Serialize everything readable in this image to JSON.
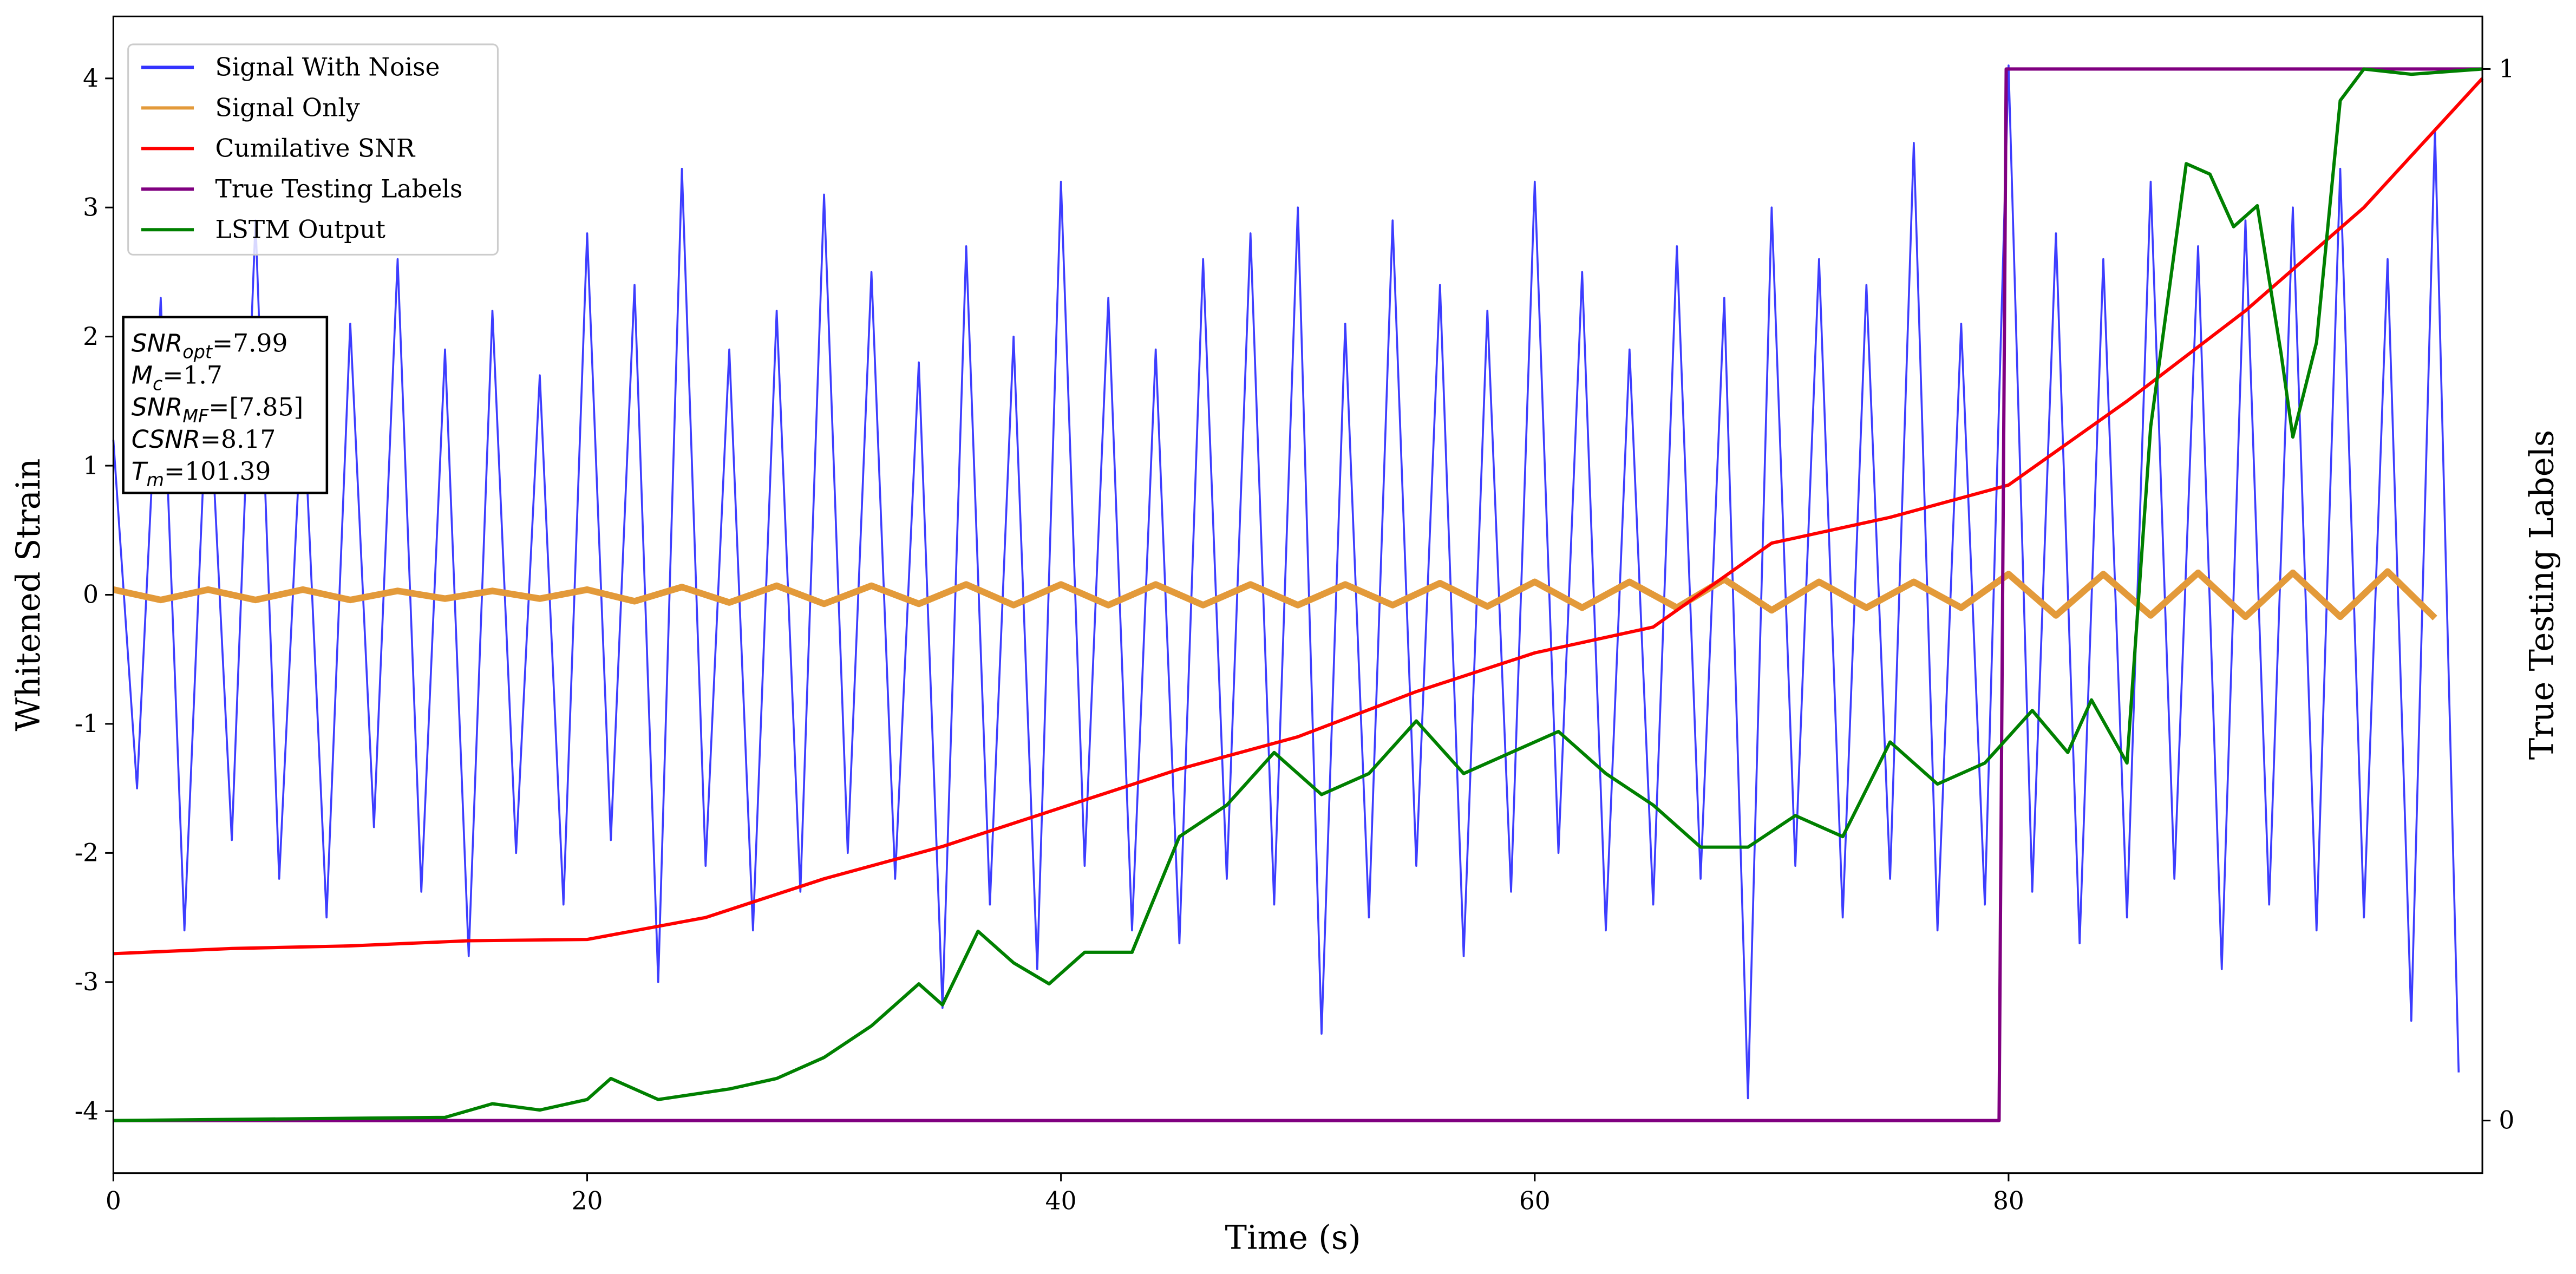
{
  "chart_data": {
    "type": "line",
    "xlabel": "Time (s)",
    "ylabel": "Whitened Strain",
    "y2label": "True Testing Labels",
    "xlim": [
      0,
      100
    ],
    "ylim": [
      -4.48,
      4.48
    ],
    "y2lim": [
      -0.05,
      1.05
    ],
    "xticks": [
      0,
      20,
      40,
      60,
      80
    ],
    "yticks": [
      -4,
      -3,
      -2,
      -1,
      0,
      1,
      2,
      3,
      4
    ],
    "y2ticks": [
      0,
      1
    ],
    "legend": "upper left",
    "annotations": [
      {
        "symbol": "SNR",
        "subscript": "opt",
        "text": "=7.99"
      },
      {
        "symbol": "M",
        "subscript": "c",
        "text": "=1.7"
      },
      {
        "symbol": "SNR",
        "subscript": "MF",
        "text": "=[7.85]"
      },
      {
        "symbol": "CSNR",
        "subscript": "",
        "text": "=8.17"
      },
      {
        "symbol": "T",
        "subscript": "m",
        "text": "=101.39"
      }
    ],
    "series": [
      {
        "name": "Signal With Noise",
        "color": "#3333ff",
        "width": 1.2,
        "x": [
          0,
          1,
          2,
          3,
          4,
          5,
          6,
          7,
          8,
          9,
          10,
          11,
          12,
          13,
          14,
          15,
          16,
          17,
          18,
          19,
          20,
          21,
          22,
          23,
          24,
          25,
          26,
          27,
          28,
          29,
          30,
          31,
          32,
          33,
          34,
          35,
          36,
          37,
          38,
          39,
          40,
          41,
          42,
          43,
          44,
          45,
          46,
          47,
          48,
          49,
          50,
          51,
          52,
          53,
          54,
          55,
          56,
          57,
          58,
          59,
          60,
          61,
          62,
          63,
          64,
          65,
          66,
          67,
          68,
          69,
          70,
          71,
          72,
          73,
          74,
          75,
          76,
          77,
          78,
          79,
          80,
          81,
          82,
          83,
          84,
          85,
          86,
          87,
          88,
          89,
          90,
          91,
          92,
          93,
          94,
          95,
          96,
          97,
          98,
          99
        ],
        "values": [
          1.2,
          -1.5,
          2.3,
          -2.6,
          1.8,
          -1.9,
          2.9,
          -2.2,
          1.6,
          -2.5,
          2.1,
          -1.8,
          2.6,
          -2.3,
          1.9,
          -2.8,
          2.2,
          -2.0,
          1.7,
          -2.4,
          2.8,
          -1.9,
          2.4,
          -3.0,
          3.3,
          -2.1,
          1.9,
          -2.6,
          2.2,
          -2.3,
          3.1,
          -2.0,
          2.5,
          -2.2,
          1.8,
          -3.2,
          2.7,
          -2.4,
          2.0,
          -2.9,
          3.2,
          -2.1,
          2.3,
          -2.6,
          1.9,
          -2.7,
          2.6,
          -2.2,
          2.8,
          -2.4,
          3.0,
          -3.4,
          2.1,
          -2.5,
          2.9,
          -2.1,
          2.4,
          -2.8,
          2.2,
          -2.3,
          3.2,
          -2.0,
          2.5,
          -2.6,
          1.9,
          -2.4,
          2.7,
          -2.2,
          2.3,
          -3.9,
          3.0,
          -2.1,
          2.6,
          -2.5,
          2.4,
          -2.2,
          3.5,
          -2.6,
          2.1,
          -2.4,
          4.1,
          -2.3,
          2.8,
          -2.7,
          2.6,
          -2.5,
          3.2,
          -2.2,
          2.7,
          -2.9,
          2.9,
          -2.4,
          3.0,
          -2.6,
          3.3,
          -2.5,
          2.6,
          -3.3,
          3.6,
          -3.7
        ]
      },
      {
        "name": "Signal Only",
        "color": "#e39a3a",
        "width": 4,
        "x": [
          0,
          2,
          4,
          6,
          8,
          10,
          12,
          14,
          16,
          18,
          20,
          22,
          24,
          26,
          28,
          30,
          32,
          34,
          36,
          38,
          40,
          42,
          44,
          46,
          48,
          50,
          52,
          54,
          56,
          58,
          60,
          62,
          64,
          66,
          68,
          70,
          72,
          74,
          76,
          78,
          80,
          82,
          84,
          86,
          88,
          90,
          92,
          94,
          96,
          98
        ],
        "values": [
          0.04,
          -0.04,
          0.04,
          -0.04,
          0.04,
          -0.04,
          0.03,
          -0.03,
          0.03,
          -0.03,
          0.04,
          -0.05,
          0.06,
          -0.06,
          0.07,
          -0.07,
          0.07,
          -0.07,
          0.08,
          -0.08,
          0.08,
          -0.08,
          0.08,
          -0.08,
          0.08,
          -0.08,
          0.08,
          -0.08,
          0.09,
          -0.09,
          0.1,
          -0.1,
          0.1,
          -0.1,
          0.12,
          -0.12,
          0.1,
          -0.1,
          0.1,
          -0.1,
          0.16,
          -0.16,
          0.16,
          -0.16,
          0.17,
          -0.17,
          0.17,
          -0.17,
          0.18,
          -0.18
        ]
      },
      {
        "name": "Cumilative SNR",
        "color": "#ff0000",
        "width": 2,
        "x": [
          0,
          5,
          10,
          15,
          20,
          25,
          30,
          35,
          40,
          45,
          50,
          55,
          60,
          65,
          70,
          75,
          80,
          85,
          90,
          95,
          100
        ],
        "values": [
          -2.78,
          -2.74,
          -2.72,
          -2.68,
          -2.67,
          -2.5,
          -2.2,
          -1.95,
          -1.65,
          -1.35,
          -1.1,
          -0.75,
          -0.45,
          -0.25,
          0.4,
          0.6,
          0.85,
          1.5,
          2.2,
          3.0,
          4.0
        ]
      },
      {
        "name": "True Testing Labels",
        "color": "#800080",
        "width": 2,
        "axis": "y2",
        "x": [
          0,
          79.6,
          79.9,
          100
        ],
        "values": [
          0,
          0,
          1,
          1
        ]
      },
      {
        "name": "LSTM Output",
        "color": "#008000",
        "width": 2,
        "axis": "y2",
        "x": [
          0,
          14,
          16,
          18,
          20,
          21,
          23,
          26,
          28,
          30,
          32,
          34,
          35,
          36.5,
          38,
          39.5,
          41,
          43,
          45,
          47,
          49,
          51,
          53,
          55,
          57,
          59,
          61,
          63,
          65,
          67,
          69,
          71,
          73,
          75,
          77,
          79,
          81,
          82.5,
          83.5,
          85,
          86,
          87.5,
          88.5,
          89.5,
          90.5,
          91.5,
          92,
          93,
          94,
          95,
          97,
          100
        ],
        "values": [
          0,
          0.003,
          0.016,
          0.01,
          0.02,
          0.04,
          0.02,
          0.03,
          0.04,
          0.06,
          0.09,
          0.13,
          0.11,
          0.18,
          0.15,
          0.13,
          0.16,
          0.16,
          0.27,
          0.3,
          0.35,
          0.31,
          0.33,
          0.38,
          0.33,
          0.35,
          0.37,
          0.33,
          0.3,
          0.26,
          0.26,
          0.29,
          0.27,
          0.36,
          0.32,
          0.34,
          0.39,
          0.35,
          0.4,
          0.34,
          0.66,
          0.91,
          0.9,
          0.85,
          0.87,
          0.73,
          0.65,
          0.74,
          0.97,
          1.0,
          0.995,
          1.0
        ]
      }
    ]
  }
}
